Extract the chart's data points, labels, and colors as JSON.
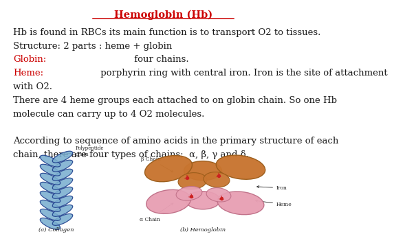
{
  "title": "Hemoglobin (Hb)",
  "title_color": "#cc0000",
  "title_fontsize": 10.5,
  "background_color": "#ffffff",
  "lines": [
    {
      "text": "Hb is found in RBCs its main function is to transport O2 to tissues.",
      "color": "#1a1a1a"
    },
    {
      "text": "Structure: 2 parts : heme + globin",
      "color": "#1a1a1a"
    },
    {
      "part1": "Globin:",
      "part1_color": "#cc0000",
      "part2": " four chains.",
      "part2_color": "#1a1a1a"
    },
    {
      "part1": "Heme:",
      "part1_color": "#cc0000",
      "part2": " porphyrin ring with central iron. Iron is the site of attachment",
      "part2_color": "#1a1a1a"
    },
    {
      "text": "with O2.",
      "color": "#1a1a1a"
    },
    {
      "text": "There are 4 heme groups each attached to on globin chain. So one Hb",
      "color": "#1a1a1a"
    },
    {
      "text": "molecule can carry up to 4 O2 molecules.",
      "color": "#1a1a1a"
    },
    {
      "text": "",
      "color": "#1a1a1a"
    },
    {
      "text": "According to sequence of amino acids in the primary structure of each",
      "color": "#1a1a1a"
    },
    {
      "text": "chain, there are four types of chains;  α, β, γ and δ.",
      "color": "#1a1a1a"
    }
  ],
  "body_fontsize": 9.5,
  "fig_width": 4.5,
  "fig_height": 3.38,
  "helix_light": "#7aaed0",
  "helix_dark": "#1c3d8c",
  "orange_fill": "#c87530",
  "orange_edge": "#9a5c1a",
  "pink_fill": "#e8a0b4",
  "pink_edge": "#c07088",
  "iron_color": "#cc2020",
  "label_color": "#222222"
}
